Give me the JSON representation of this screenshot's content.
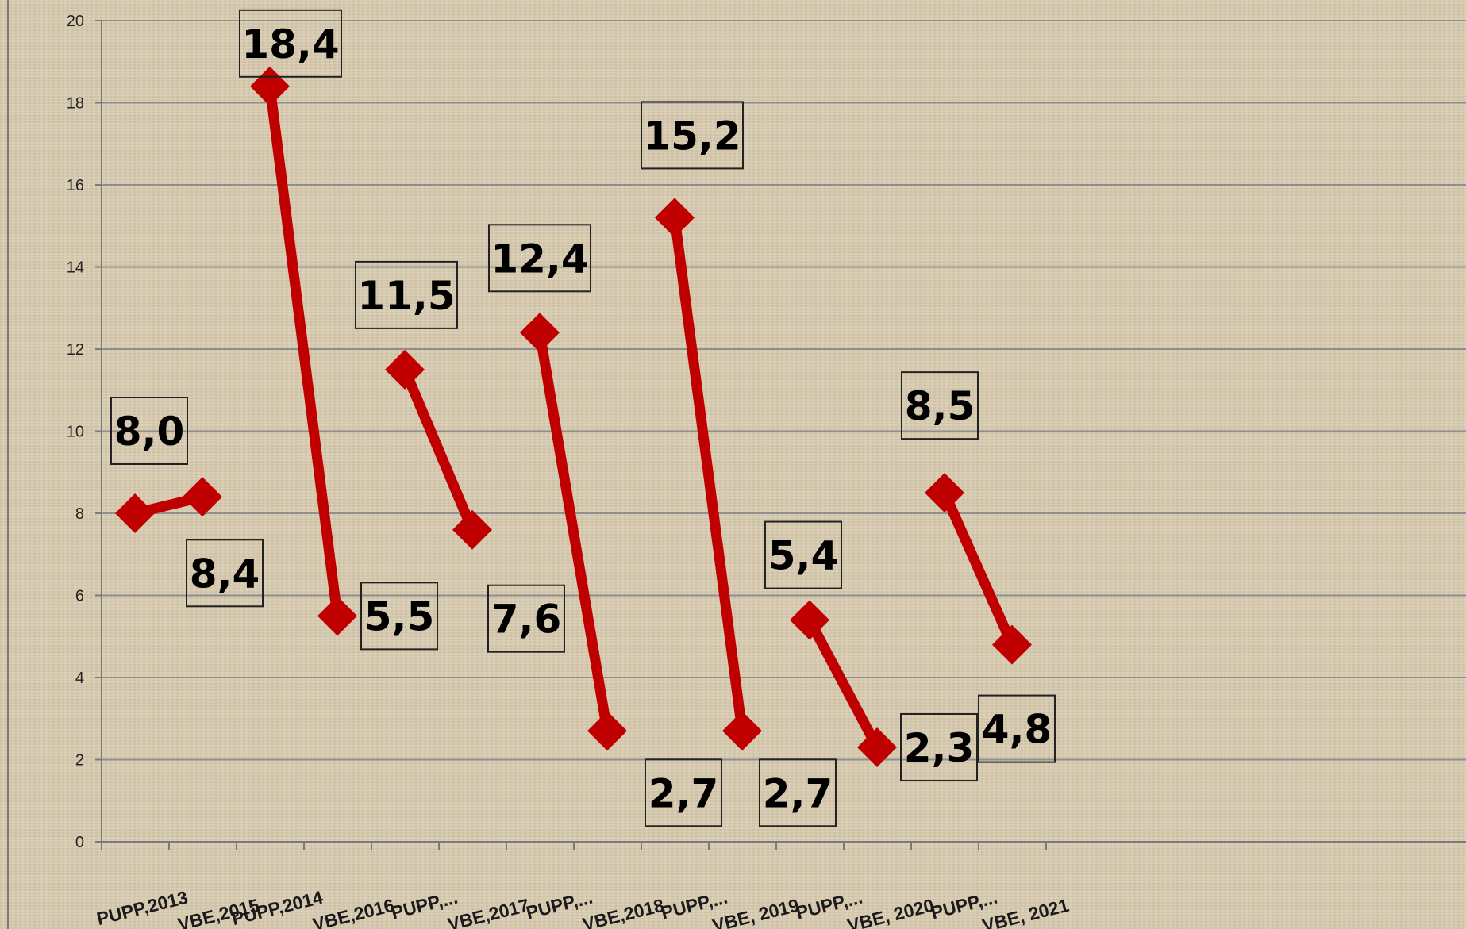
{
  "chart_data": {
    "type": "line",
    "categories": [
      "PUPP,2013",
      "VBE,2015",
      "PUPP,2014",
      "VBE,2016",
      "PUPP,...",
      "VBE,2017",
      "PUPP,...",
      "VBE,2018",
      "PUPP,...",
      "VBE, 2019",
      "PUPP,...",
      "VBE, 2020",
      "PUPP,...",
      "VBE, 2021"
    ],
    "groups": [
      {
        "a": 8.0,
        "b": 8.4,
        "label_a": "8,0",
        "label_b": "8,4"
      },
      {
        "a": 18.4,
        "b": 5.5,
        "label_a": "18,4",
        "label_b": "5,5"
      },
      {
        "a": 11.5,
        "b": 7.6,
        "label_a": "11,5",
        "label_b": "7,6"
      },
      {
        "a": 12.4,
        "b": 2.7,
        "label_a": "12,4",
        "label_b": "2,7"
      },
      {
        "a": 15.2,
        "b": 2.7,
        "label_a": "15,2",
        "label_b": "2,7"
      },
      {
        "a": 5.4,
        "b": 2.3,
        "label_a": "5,4",
        "label_b": "2,3"
      },
      {
        "a": 8.5,
        "b": 4.8,
        "label_a": "8,5",
        "label_b": "4,8"
      }
    ],
    "ylim": [
      0,
      20
    ],
    "yticks": [
      0,
      2,
      4,
      6,
      8,
      10,
      12,
      14,
      16,
      18,
      20
    ],
    "grid": true,
    "colors": {
      "line": "#c00000",
      "gridline": "#8f8f8f",
      "axis": "#7a7a7a",
      "label_border": "#222222"
    }
  }
}
